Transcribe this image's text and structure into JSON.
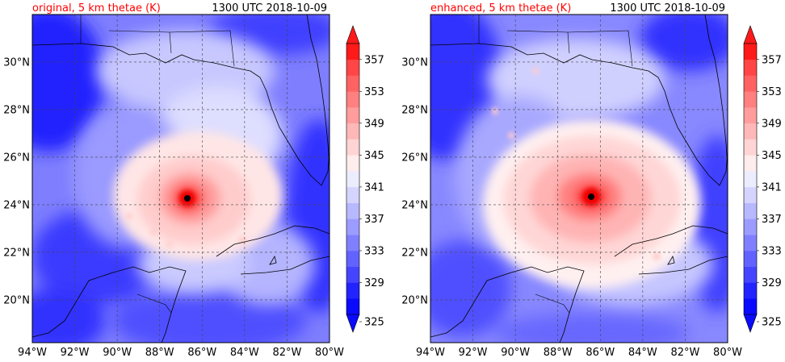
{
  "panels": [
    {
      "id": "original",
      "title_left": "original, 5 km thetae (K)",
      "title_right": "1300 UTC 2018-10-09",
      "center_lon": -86.6,
      "center_lat": 24.3
    },
    {
      "id": "enhanced",
      "title_left": "enhanced, 5 km thetae (K)",
      "title_right": "1300 UTC 2018-10-09",
      "center_lon": -86.4,
      "center_lat": 24.4
    }
  ],
  "map": {
    "lon_range": [
      -94,
      -80
    ],
    "lat_range": [
      18.2,
      32.0
    ],
    "lon_ticks": [
      "94°W",
      "92°W",
      "90°W",
      "88°W",
      "86°W",
      "84°W",
      "82°W",
      "80°W"
    ],
    "lon_tick_values": [
      -94,
      -92,
      -90,
      -88,
      -86,
      -84,
      -82,
      -80
    ],
    "lat_ticks": [
      "20°N",
      "22°N",
      "24°N",
      "26°N",
      "28°N",
      "30°N"
    ],
    "lat_tick_values": [
      20,
      22,
      24,
      26,
      28,
      30
    ],
    "grid": true
  },
  "colorbar": {
    "min": 325,
    "max": 359,
    "step": 2,
    "tick_labels": [
      "325",
      "329",
      "333",
      "337",
      "341",
      "345",
      "349",
      "353",
      "357"
    ],
    "tick_values": [
      325,
      329,
      333,
      337,
      341,
      345,
      349,
      353,
      357
    ],
    "colors": [
      "#0a0aff",
      "#2323ff",
      "#4545ff",
      "#6262ff",
      "#8080ff",
      "#9c9cff",
      "#b8b8ff",
      "#d4d4ff",
      "#ececff",
      "#ffecec",
      "#ffd4d4",
      "#ffb8b8",
      "#ff9c9c",
      "#ff8080",
      "#ff6262",
      "#ff4545",
      "#ff1a1a"
    ],
    "extend": "both"
  },
  "colors": {
    "title_red": "#ff0000",
    "eye": "#000000"
  }
}
